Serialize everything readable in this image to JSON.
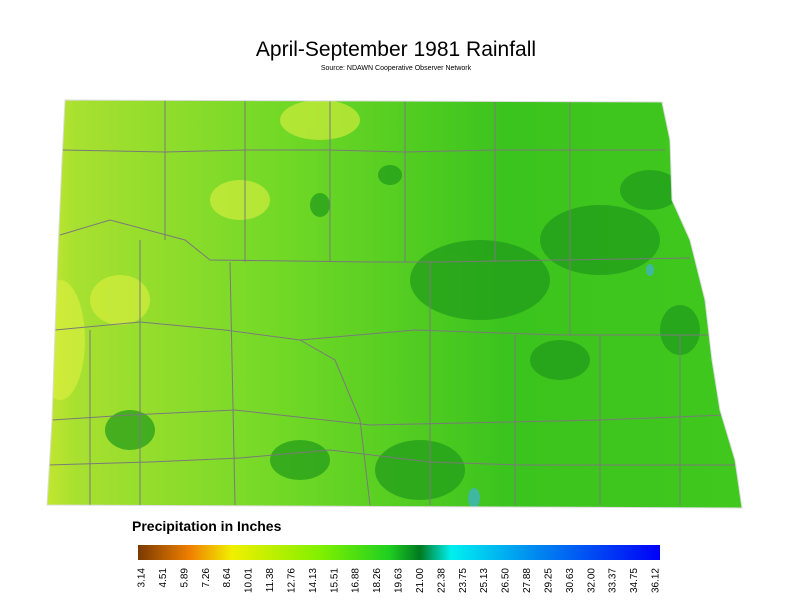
{
  "title": "April-September 1981 Rainfall",
  "source": "Source: NDAWN Cooperative Observer Network",
  "legend": {
    "title": "Precipitation in Inches",
    "labels": [
      "3.14",
      "4.51",
      "5.89",
      "7.26",
      "8.64",
      "10.01",
      "11.38",
      "12.76",
      "14.13",
      "15.51",
      "16.88",
      "18.26",
      "19.63",
      "21.00",
      "22.38",
      "23.75",
      "25.13",
      "26.50",
      "27.88",
      "29.25",
      "30.63",
      "32.00",
      "33.37",
      "34.75",
      "36.12"
    ]
  }
}
